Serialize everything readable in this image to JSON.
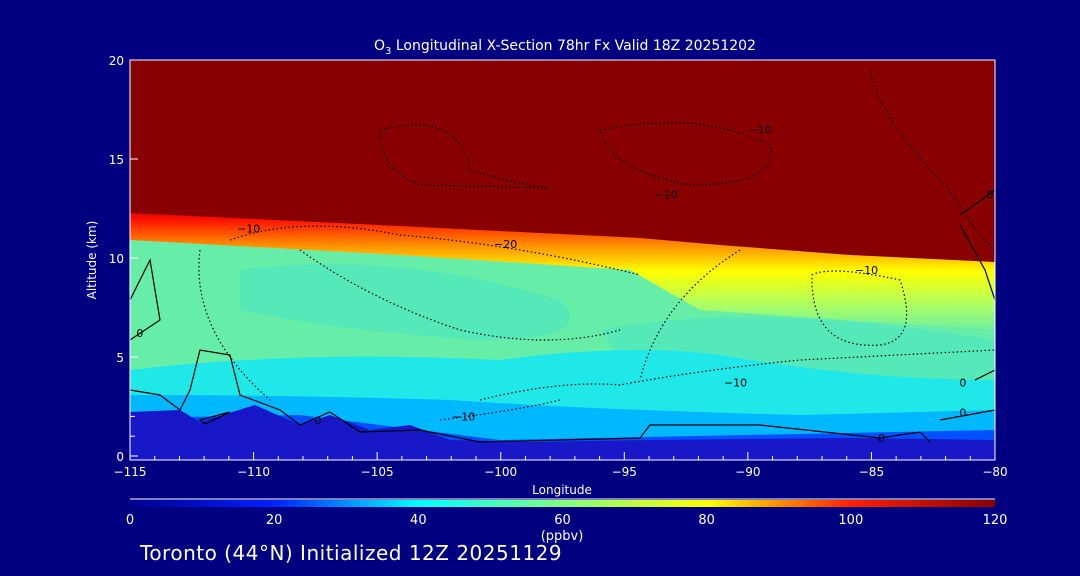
{
  "chart_data": {
    "type": "heatmap",
    "subtype": "filled-contour cross-section",
    "title_species": "O",
    "title_subscript": "3",
    "title_rest": " Longitudinal X-Section 78hr  Fx Valid 18Z 20251202",
    "xlabel": "Longitude",
    "ylabel": "Altitude (km)",
    "xlim": [
      -115,
      -80
    ],
    "ylim": [
      0,
      20
    ],
    "xticks": [
      "-115",
      "-110",
      "-105",
      "-100",
      "-95",
      "-90",
      "-85",
      "-80"
    ],
    "xtick_values": [
      -115,
      -110,
      -105,
      -100,
      -95,
      -90,
      -85,
      -80
    ],
    "yticks": [
      "0",
      "5",
      "10",
      "15",
      "20"
    ],
    "ytick_values": [
      0,
      5,
      10,
      15,
      20
    ],
    "colorbar": {
      "label": "(ppbv)",
      "range": [
        0,
        120
      ],
      "ticks": [
        "0",
        "20",
        "40",
        "60",
        "80",
        "100",
        "120"
      ],
      "tick_values": [
        0,
        20,
        40,
        60,
        80,
        100,
        120
      ],
      "colors": [
        "#00008b",
        "#0000ff",
        "#00ffff",
        "#80ff80",
        "#ffff00",
        "#ff0000",
        "#8b0000"
      ]
    },
    "contour_labels": [
      {
        "text": "-10",
        "lon": -110.2,
        "alt": 11.5
      },
      {
        "text": "-10",
        "lon": -89.5,
        "alt": 16.5
      },
      {
        "text": "-10",
        "lon": -93.3,
        "alt": 13.2
      },
      {
        "text": "-20",
        "lon": -99.8,
        "alt": 10.7
      },
      {
        "text": "-10",
        "lon": -85.2,
        "alt": 9.4
      },
      {
        "text": "-10",
        "lon": -90.5,
        "alt": 3.7
      },
      {
        "text": "-10",
        "lon": -101.5,
        "alt": 2.0
      },
      {
        "text": "0",
        "lon": -114.6,
        "alt": 6.2
      },
      {
        "text": "0",
        "lon": -107.4,
        "alt": 1.8
      },
      {
        "text": "0",
        "lon": -84.6,
        "alt": 0.9
      },
      {
        "text": "0",
        "lon": -81.3,
        "alt": 2.2
      },
      {
        "text": "0",
        "lon": -81.3,
        "alt": 3.7
      },
      {
        "text": "0",
        "lon": -80.2,
        "alt": 13.2
      }
    ]
  },
  "footer": "Toronto (44°N) Initialized 12Z 20251129"
}
